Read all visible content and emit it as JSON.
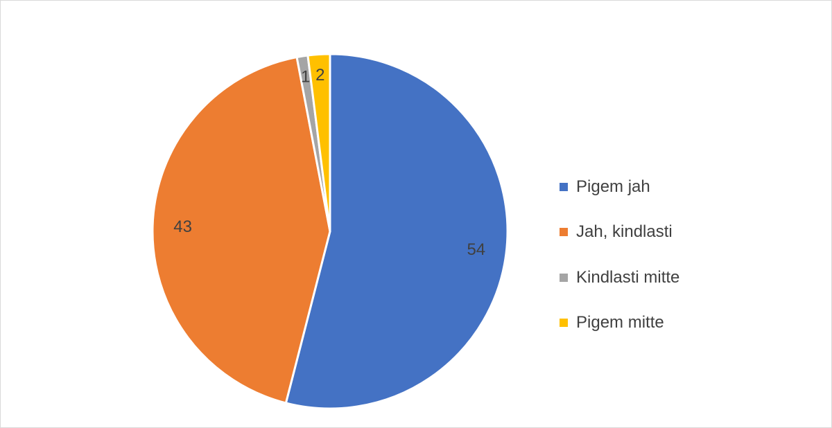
{
  "chart_data": {
    "type": "pie",
    "categories": [
      "Pigem jah",
      "Jah, kindlasti",
      "Kindlasti mitte",
      "Pigem mitte"
    ],
    "values": [
      54,
      43,
      1,
      2
    ],
    "colors": [
      "#4472C4",
      "#ED7D31",
      "#A5A5A5",
      "#FFC000"
    ],
    "data_labels": [
      "54",
      "43",
      "1",
      "2"
    ],
    "legend_position": "right",
    "start_angle": "12 o'clock",
    "direction": "clockwise"
  }
}
